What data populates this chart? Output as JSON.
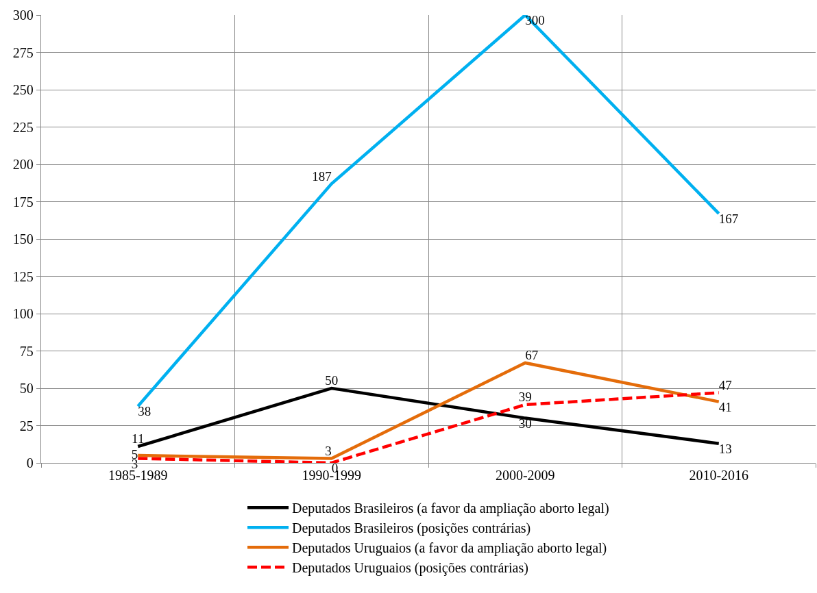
{
  "chart_data": {
    "type": "line",
    "categories": [
      "1985-1989",
      "1990-1999",
      "2000-2009",
      "2010-2016"
    ],
    "series": [
      {
        "name": "Deputados Brasileiros (a favor da ampliação aborto legal)",
        "color": "#000000",
        "values": [
          11,
          50,
          30,
          13
        ]
      },
      {
        "name": "Deputados Brasileiros (posições contrárias)",
        "color": "#00b0f0",
        "values": [
          38,
          187,
          300,
          167
        ]
      },
      {
        "name": "Deputados Uruguaios (a favor da ampliação aborto legal)",
        "color": "#e46c0a",
        "values": [
          5,
          3,
          67,
          41
        ]
      },
      {
        "name": "Deputados Uruguaios (posições contrárias)",
        "color": "#ff0000",
        "values": [
          3,
          0,
          39,
          47
        ],
        "line_style": "dashed"
      }
    ],
    "ylim": [
      0,
      300
    ],
    "yticks": [
      0,
      25,
      50,
      75,
      100,
      125,
      150,
      175,
      200,
      225,
      250,
      275,
      300
    ],
    "grid": true,
    "legend": "bottom",
    "data_labels": true,
    "marker": "none"
  }
}
